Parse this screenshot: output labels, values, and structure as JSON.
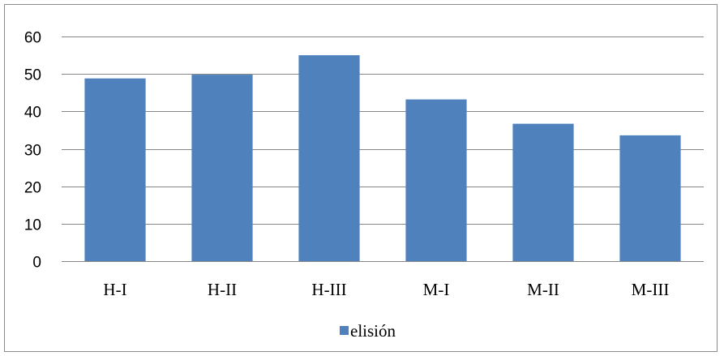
{
  "chart_data": {
    "type": "bar",
    "categories": [
      "H-I",
      "H-II",
      "H-III",
      "M-I",
      "M-II",
      "M-III"
    ],
    "series": [
      {
        "name": "elisión",
        "values": [
          48.8,
          49.8,
          55.0,
          43.2,
          36.7,
          33.6
        ],
        "color": "#4f81bd"
      }
    ],
    "yticks": [
      "0",
      "10",
      "20",
      "30",
      "40",
      "50",
      "60"
    ],
    "ylim": [
      0,
      60
    ],
    "grid": true,
    "legend": "bottom",
    "title": "",
    "xlabel": "",
    "ylabel": ""
  }
}
